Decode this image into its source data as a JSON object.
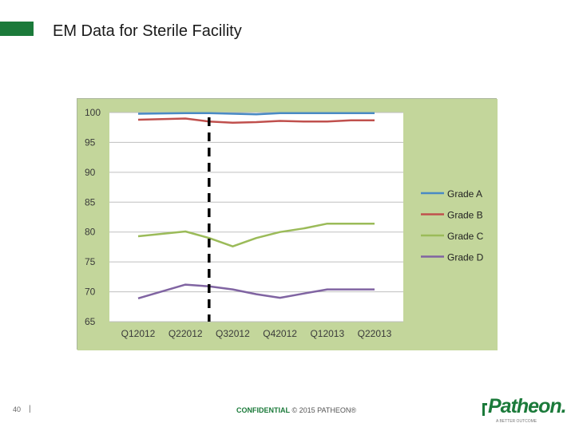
{
  "slide": {
    "title": "EM Data for Sterile Facility",
    "accent_color": "#1b7a3a",
    "page_number": "40",
    "separator": "|",
    "confidential_label": "CONFIDENTIAL",
    "copyright": "© 2015 PATHEON®"
  },
  "logo": {
    "text": "Patheon.",
    "tagline": "A BETTER OUTCOME",
    "color": "#1b7a3a"
  },
  "chart_data": {
    "type": "line",
    "categories": [
      "Q12012",
      "Q22012",
      "Q32012",
      "Q42012",
      "Q12013",
      "Q22013"
    ],
    "x": [
      0,
      1,
      1.5,
      2,
      2.5,
      3,
      3.5,
      4,
      4.5,
      5
    ],
    "ylim": [
      65,
      100
    ],
    "yticks": [
      65,
      70,
      75,
      80,
      85,
      90,
      95,
      100
    ],
    "grid": true,
    "legend_position": "right",
    "divider_after_category": "Q22012",
    "colors": {
      "panel_background": "#c3d69b",
      "plot_background": "#ffffff",
      "gridline": "#bfbfbf",
      "divider": "#000000"
    },
    "series": [
      {
        "name": "Grade A",
        "color": "#4a8ac4",
        "values": [
          99.8,
          99.9,
          99.9,
          99.8,
          99.7,
          99.9,
          99.9,
          99.9,
          99.9,
          99.9
        ]
      },
      {
        "name": "Grade B",
        "color": "#c0504d",
        "values": [
          98.8,
          99.0,
          98.5,
          98.3,
          98.4,
          98.6,
          98.5,
          98.5,
          98.7,
          98.7
        ]
      },
      {
        "name": "Grade C",
        "color": "#9bbb59",
        "values": [
          79.3,
          80.1,
          79.0,
          77.6,
          79.0,
          80.0,
          80.6,
          81.4,
          81.4,
          81.4
        ]
      },
      {
        "name": "Grade D",
        "color": "#8064a2",
        "values": [
          68.9,
          71.2,
          70.9,
          70.4,
          69.6,
          69.0,
          69.7,
          70.4,
          70.4,
          70.4
        ]
      }
    ]
  }
}
